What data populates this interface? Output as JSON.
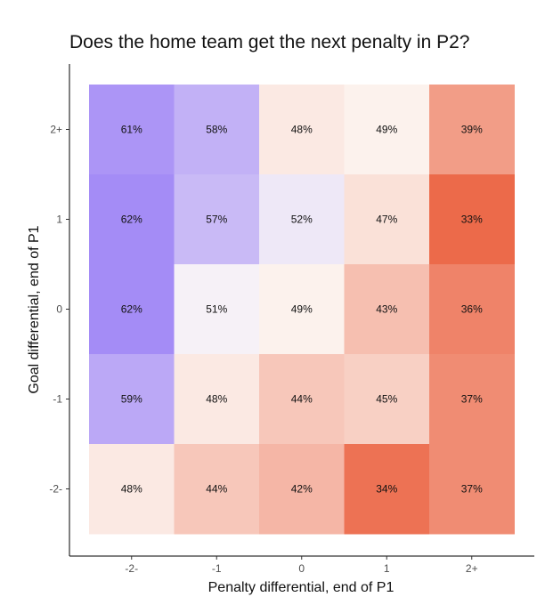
{
  "chart_data": {
    "type": "heatmap",
    "title": "Does the home team get the next penalty in P2?",
    "xlabel": "Penalty differential, end of P1",
    "ylabel": "Goal differential, end of P1",
    "x_categories": [
      "-2-",
      "-1",
      "0",
      "1",
      "2+"
    ],
    "y_categories": [
      "2+",
      "1",
      "0",
      "-1",
      "-2-"
    ],
    "values": [
      [
        61,
        58,
        48,
        49,
        39
      ],
      [
        62,
        57,
        52,
        47,
        33
      ],
      [
        62,
        51,
        49,
        43,
        36
      ],
      [
        59,
        48,
        44,
        45,
        37
      ],
      [
        48,
        44,
        42,
        34,
        37
      ]
    ],
    "value_labels": [
      [
        "61%",
        "58%",
        "48%",
        "49%",
        "39%"
      ],
      [
        "62%",
        "57%",
        "52%",
        "47%",
        "33%"
      ],
      [
        "62%",
        "51%",
        "49%",
        "43%",
        "36%"
      ],
      [
        "59%",
        "48%",
        "44%",
        "45%",
        "37%"
      ],
      [
        "48%",
        "44%",
        "42%",
        "34%",
        "37%"
      ]
    ],
    "color_scale": {
      "low": "#ec6a4a",
      "mid": "#fdfaf7",
      "high": "#9d83f6",
      "midpoint": 50
    },
    "grid": false,
    "legend": "none"
  }
}
